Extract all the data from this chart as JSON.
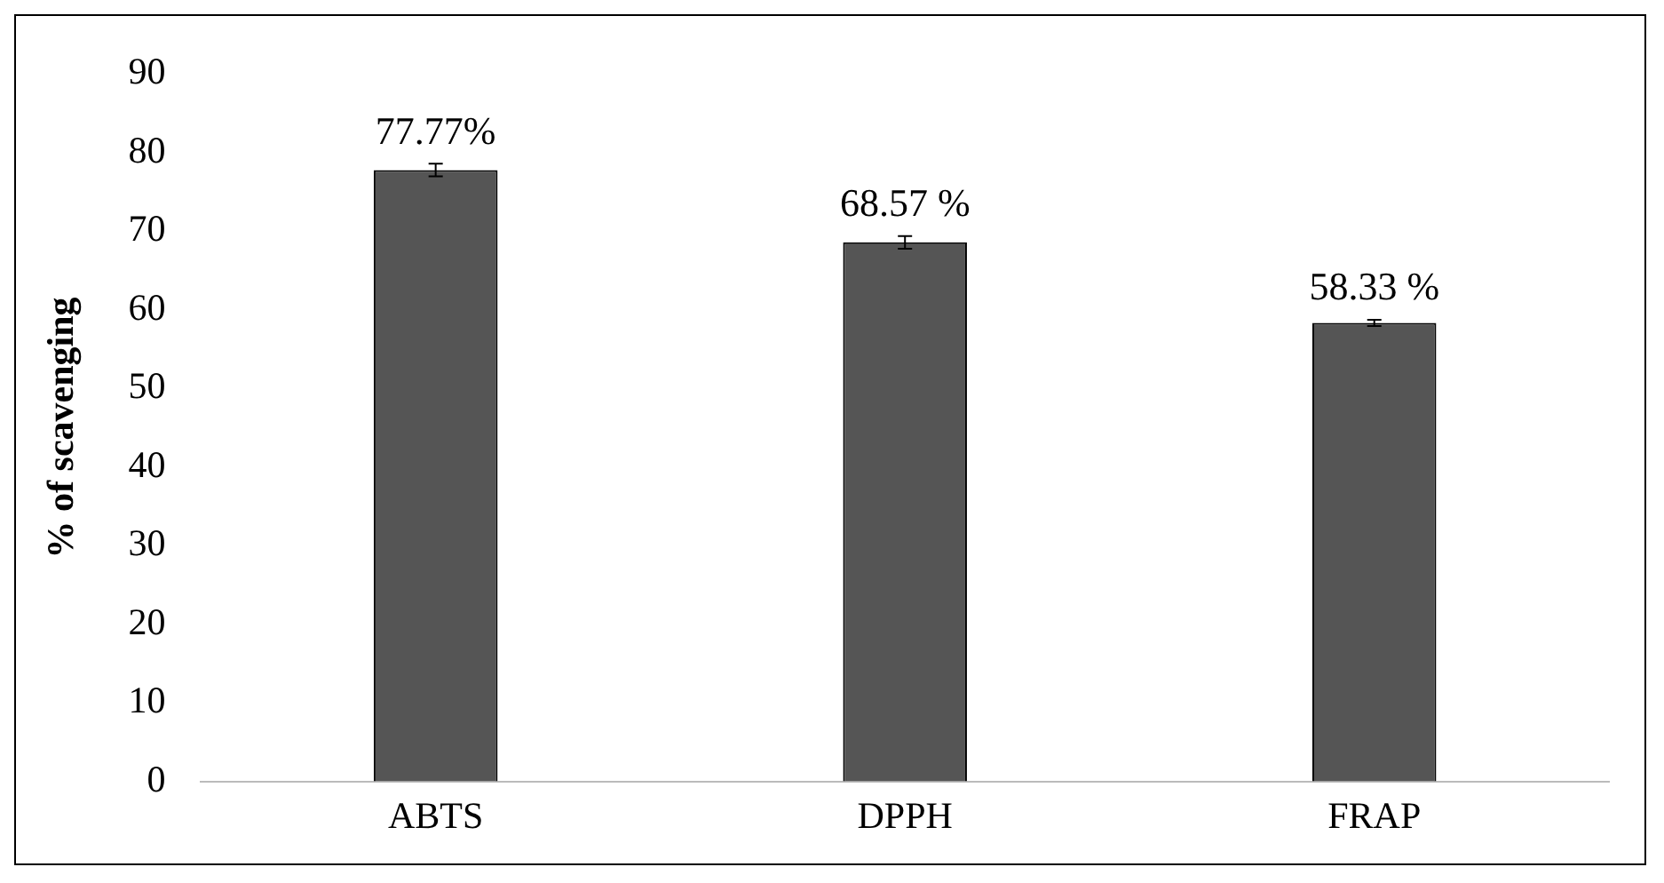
{
  "chart_data": {
    "type": "bar",
    "ylabel": "% of scavenging",
    "categories": [
      "ABTS",
      "DPPH",
      "FRAP"
    ],
    "values": [
      77.77,
      68.57,
      58.33
    ],
    "errors": [
      0.8,
      0.8,
      0.4
    ],
    "value_labels": [
      "77.77%",
      "68.57 %",
      "58.33 %"
    ],
    "color": "#555555",
    "ylim": [
      0,
      90
    ],
    "yticks": [
      0,
      10,
      20,
      30,
      40,
      50,
      60,
      70,
      80,
      90
    ],
    "grid": false,
    "legend": false
  }
}
